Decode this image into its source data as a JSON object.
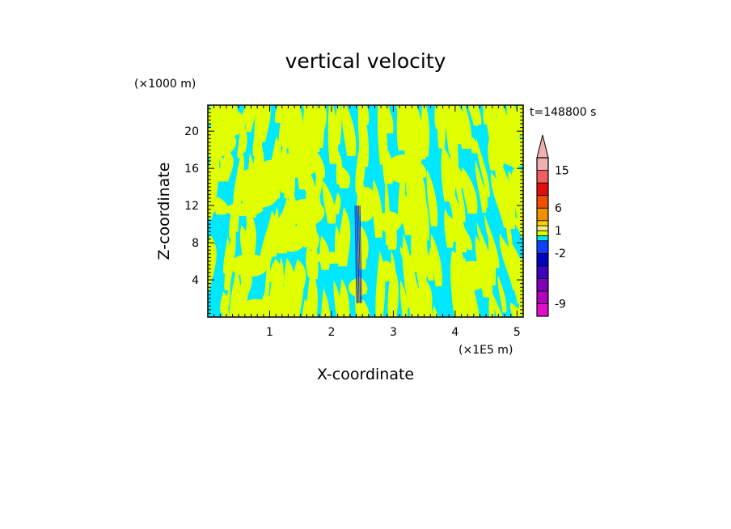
{
  "chart_data": {
    "type": "heatmap",
    "title": "vertical velocity",
    "xlabel": "X-coordinate",
    "ylabel": "Z-coordinate",
    "x_units": "(×1E5 m)",
    "y_units": "(×1000 m)",
    "time_label": "t=148800 s",
    "xlim": [
      0,
      5.1
    ],
    "ylim": [
      0,
      22.8
    ],
    "x_ticks": [
      1,
      2,
      3,
      4,
      5
    ],
    "y_ticks": [
      4,
      8,
      12,
      16,
      20
    ],
    "colorbar": {
      "levels": [
        -11,
        -9,
        -7,
        -5,
        -3,
        -2,
        -1,
        0,
        1,
        2,
        3,
        6,
        9,
        12,
        15,
        18
      ],
      "colors": [
        "#e010c8",
        "#b000c0",
        "#8000b8",
        "#4000c0",
        "#0000c0",
        "#1040ff",
        "#00e8ff",
        "#e0ff00",
        "#f0f080",
        "#ffd000",
        "#f09000",
        "#f05000",
        "#e01010",
        "#f06060",
        "#f0b0b0"
      ],
      "tick_labels": [
        {
          "label": "-9",
          "value": -9
        },
        {
          "label": "-2",
          "value": -2
        },
        {
          "label": "1",
          "value": 1
        },
        {
          "label": "6",
          "value": 6
        },
        {
          "label": "15",
          "value": 15
        }
      ],
      "extend_max": true
    },
    "field_colors": {
      "negative": "#00e8ff",
      "positive": "#e0ff00",
      "strong": "#2030c0"
    }
  }
}
